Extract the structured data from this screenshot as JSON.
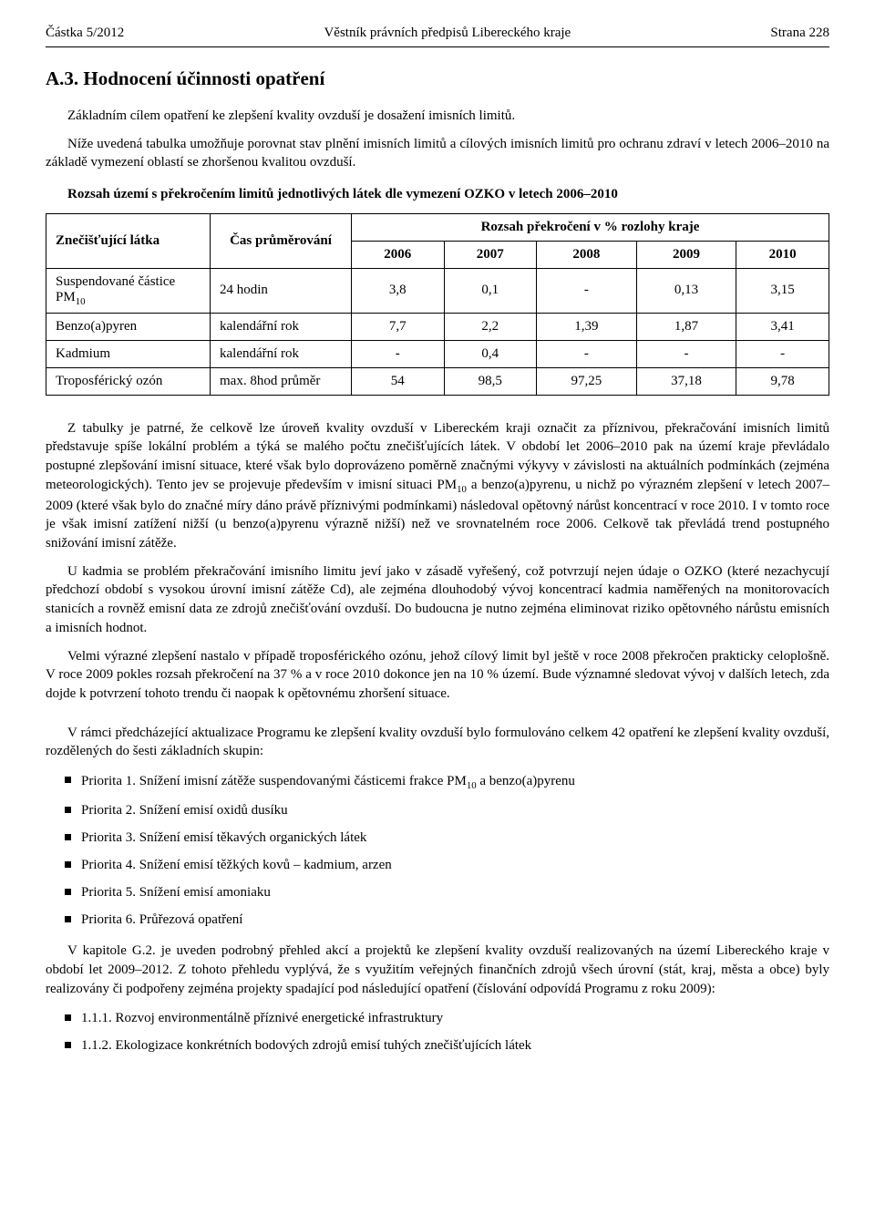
{
  "header": {
    "left": "Částka 5/2012",
    "center": "Věstník právních předpisů Libereckého kraje",
    "right": "Strana 228"
  },
  "section": {
    "title": "A.3. Hodnocení účinnosti opatření",
    "para1": "Základním cílem opatření ke zlepšení kvality ovzduší je dosažení imisních limitů.",
    "para2": "Níže uvedená tabulka umožňuje porovnat stav plnění imisních limitů a cílových imisních limitů pro ochranu zdraví v letech 2006–2010 na základě vymezení oblastí se zhoršenou kvalitou ovzduší.",
    "tableCaption": "Rozsah území s překročením limitů jednotlivých látek dle vymezení OZKO v letech 2006–2010"
  },
  "table": {
    "colSubstance": "Znečišťující látka",
    "colAveraging": "Čas průměrování",
    "colGroup": "Rozsah překročení v % rozlohy kraje",
    "years": [
      "2006",
      "2007",
      "2008",
      "2009",
      "2010"
    ],
    "rows": [
      {
        "substance_html": "Suspendované částice PM<span class=\"sub10\">10</span>",
        "avg": "24 hodin",
        "v": [
          "3,8",
          "0,1",
          "-",
          "0,13",
          "3,15"
        ]
      },
      {
        "substance_html": "Benzo(a)pyren",
        "avg": "kalendářní rok",
        "v": [
          "7,7",
          "2,2",
          "1,39",
          "1,87",
          "3,41"
        ]
      },
      {
        "substance_html": "Kadmium",
        "avg": "kalendářní rok",
        "v": [
          "-",
          "0,4",
          "-",
          "-",
          "-"
        ]
      },
      {
        "substance_html": "Troposférický ozón",
        "avg": "max. 8hod průměr",
        "v": [
          "54",
          "98,5",
          "97,25",
          "37,18",
          "9,78"
        ]
      }
    ],
    "border_color": "#000000",
    "background_color": "#ffffff",
    "cell_fontsize": 15
  },
  "body": {
    "p3_html": "Z tabulky je patrné, že celkově lze úroveň kvality ovzduší v Libereckém kraji označit za příznivou, překračování imisních limitů představuje spíše lokální problém a týká se malého počtu znečišťujících látek. V období let 2006–2010 pak na území kraje převládalo postupné zlepšování imisní situace, které však bylo doprovázeno poměrně značnými výkyvy v závislosti na aktuálních podmínkách (zejména meteorologických). Tento jev se projevuje především v imisní situaci PM<span class=\"sub10\">10</span> a benzo(a)pyrenu, u nichž po výrazném zlepšení v letech 2007–2009 (které však bylo do značné míry dáno právě příznivými podmínkami) následoval opětovný nárůst koncentrací v roce 2010. I v tomto roce je však imisní zatížení nižší (u benzo(a)pyrenu výrazně nižší) než ve srovnatelném roce 2006. Celkově tak převládá trend postupného snižování imisní zátěže.",
    "p4": "U kadmia se problém překračování imisního limitu jeví jako v zásadě vyřešený, což potvrzují nejen údaje o OZKO (které nezachycují předchozí období s vysokou úrovní imisní zátěže Cd), ale zejména dlouhodobý vývoj koncentrací kadmia naměřených na monitorovacích stanicích a rovněž emisní data ze zdrojů znečišťování ovzduší. Do budoucna je nutno zejména eliminovat riziko opětovného nárůstu emisních a imisních hodnot.",
    "p5": "Velmi výrazné zlepšení nastalo v případě troposférického ozónu, jehož cílový limit byl ještě v roce 2008 překročen prakticky celoplošně. V roce 2009 pokles rozsah překročení na 37 % a v roce 2010 dokonce jen na 10 % území. Bude významné sledovat vývoj v dalších letech, zda dojde k potvrzení tohoto trendu či naopak k opětovnému zhoršení situace.",
    "p6": "V rámci předcházející aktualizace Programu ke zlepšení kvality ovzduší bylo formulováno celkem 42 opatření ke zlepšení kvality ovzduší, rozdělených do šesti základních skupin:"
  },
  "priorities": [
    "Priorita 1. Snížení imisní zátěže suspendovanými částicemi frakce PM<span class=\"sub10\">10</span> a benzo(a)pyrenu",
    "Priorita 2. Snížení emisí oxidů dusíku",
    "Priorita 3. Snížení emisí těkavých organických látek",
    "Priorita 4. Snížení emisí těžkých kovů – kadmium, arzen",
    "Priorita 5. Snížení emisí amoniaku",
    "Priorita 6. Průřezová opatření"
  ],
  "body2": {
    "p7": "V kapitole G.2. je uveden podrobný přehled akcí a projektů ke zlepšení kvality ovzduší realizovaných na území Libereckého kraje v období let 2009–2012. Z tohoto přehledu vyplývá, že s využitím veřejných finančních zdrojů všech úrovní (stát, kraj, města a obce) byly realizovány či podpořeny zejména projekty spadající pod následující opatření (číslování odpovídá Programu z roku 2009):"
  },
  "measures": [
    "1.1.1. Rozvoj environmentálně příznivé energetické infrastruktury",
    "1.1.2. Ekologizace konkrétních bodových zdrojů emisí tuhých znečišťujících látek"
  ]
}
